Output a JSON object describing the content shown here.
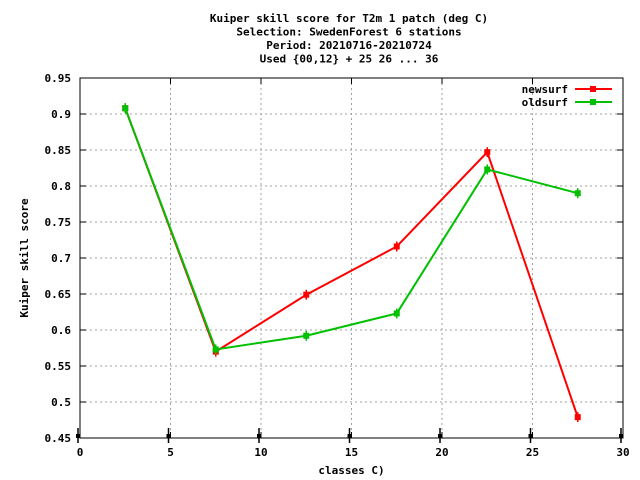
{
  "chart_data": {
    "type": "line",
    "title_lines": [
      "Kuiper skill score  for T2m 1 patch (deg C)",
      "Selection: SwedenForest      6 stations",
      "Period: 20210716-20210724",
      "Used {00,12} + 25 26 ... 36"
    ],
    "xlabel": "classes C)",
    "ylabel": "Kuiper skill score",
    "xlim": [
      0,
      30
    ],
    "ylim": [
      0.45,
      0.95
    ],
    "x_ticks": [
      0,
      5,
      10,
      15,
      20,
      25,
      30
    ],
    "y_ticks": [
      0.45,
      0.5,
      0.55,
      0.6,
      0.65,
      0.7,
      0.75,
      0.8,
      0.85,
      0.9,
      0.95
    ],
    "y_tick_labels": [
      "0.45",
      "0.5",
      "0.55",
      "0.6",
      "0.65",
      "0.7",
      "0.75",
      "0.8",
      "0.85",
      "0.9",
      "0.95"
    ],
    "grid": true,
    "legend_position": "top-right",
    "x": [
      2.5,
      7.5,
      12.5,
      17.5,
      22.5,
      27.5
    ],
    "series": [
      {
        "name": "newsurf",
        "color": "#ff0000",
        "values": [
          0.908,
          0.57,
          0.649,
          0.716,
          0.847,
          0.479
        ]
      },
      {
        "name": "oldsurf",
        "color": "#00c000",
        "values": [
          0.908,
          0.573,
          0.592,
          0.623,
          0.823,
          0.79
        ]
      }
    ]
  }
}
